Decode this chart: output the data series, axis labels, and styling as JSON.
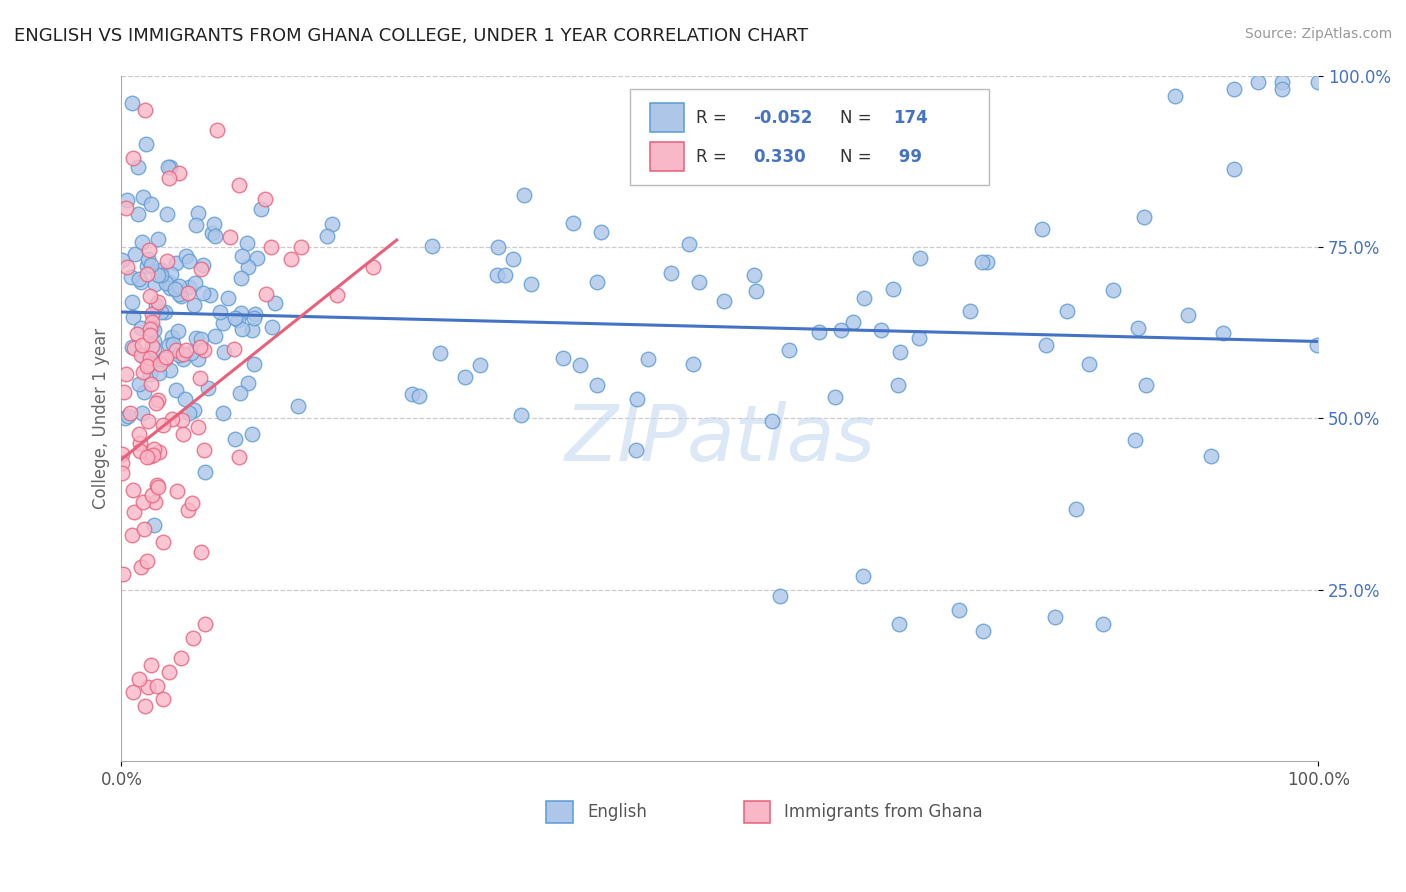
{
  "title": "ENGLISH VS IMMIGRANTS FROM GHANA COLLEGE, UNDER 1 YEAR CORRELATION CHART",
  "source": "Source: ZipAtlas.com",
  "ylabel": "College, Under 1 year",
  "r_english": "-0.052",
  "n_english": "174",
  "r_ghana": "0.330",
  "n_ghana": "99",
  "english_fill": "#aec6e8",
  "english_edge": "#5b9bd5",
  "ghana_fill": "#f9b8c8",
  "ghana_edge": "#e8607a",
  "english_line": "#4472c4",
  "ghana_line": "#e8607a",
  "watermark": "ZIPatlas",
  "watermark_color": "#c5d9f0",
  "background": "#ffffff",
  "grid_color": "#cccccc",
  "tick_color": "#4472c4",
  "bottom_legend": [
    "English",
    "Immigrants from Ghana"
  ],
  "legend_r1": "R = -0.052",
  "legend_n1": "N = 174",
  "legend_r2": "R =  0.330",
  "legend_n2": "N =  99"
}
